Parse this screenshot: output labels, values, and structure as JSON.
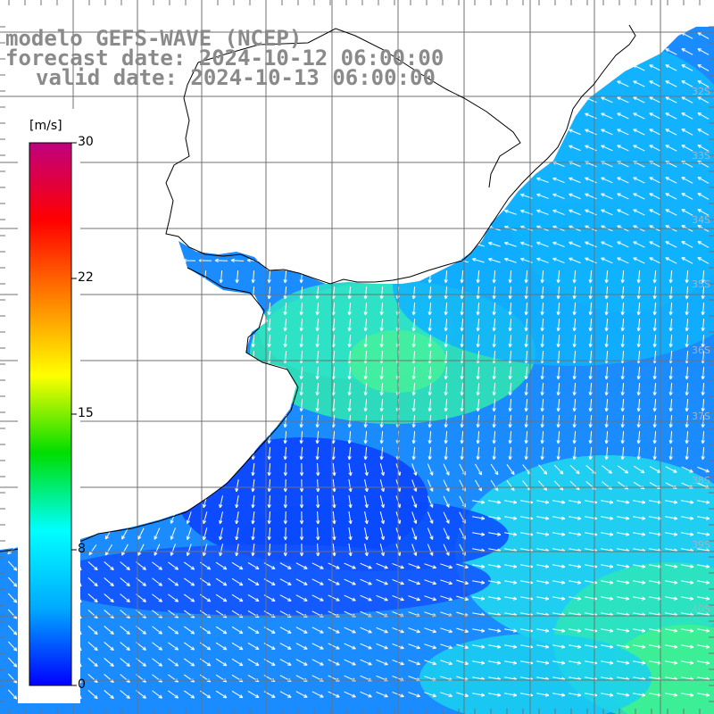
{
  "header": {
    "model_line": "modelo GEFS-WAVE (NCEP)",
    "forecast_line": "forecast date: 2024-10-12 06:00:00",
    "valid_line": "valid date: 2024-10-13 06:00:00"
  },
  "colorbar": {
    "units": "[m/s]",
    "ticks": [
      {
        "key": "t30",
        "label": "30"
      },
      {
        "key": "t22",
        "label": "22"
      },
      {
        "key": "t15",
        "label": "15"
      },
      {
        "key": "t8",
        "label": "8"
      },
      {
        "key": "t0",
        "label": "0"
      }
    ],
    "colors": [
      "#0000ff",
      "#00aaff",
      "#00ffff",
      "#00dd00",
      "#ffff00",
      "#ff8000",
      "#ff0000",
      "#c0007f"
    ]
  },
  "lat_labels": [
    {
      "key": "lat32",
      "label": "32S"
    },
    {
      "key": "lat33",
      "label": "33S"
    },
    {
      "key": "lat34",
      "label": "34S"
    },
    {
      "key": "lat35",
      "label": "35S"
    },
    {
      "key": "lat36",
      "label": "36S"
    },
    {
      "key": "lat37",
      "label": "37S"
    },
    {
      "key": "lat38",
      "label": "38S"
    },
    {
      "key": "lat39",
      "label": "39S"
    },
    {
      "key": "lat40",
      "label": "40S"
    }
  ],
  "map": {
    "land_color": "#ffffff",
    "grid_color": "#707070",
    "coast_color": "#000000",
    "arrow_color": "#ffffff"
  }
}
